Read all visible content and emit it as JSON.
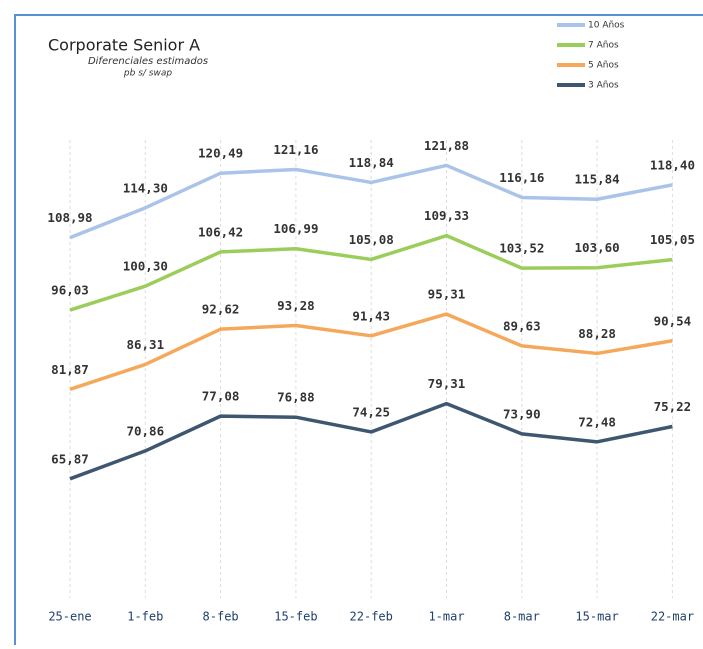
{
  "chart_data": {
    "type": "line",
    "title": "Corporate Senior A",
    "subtitle": "Diferenciales estimados",
    "subtitle2": "pb s/ swap",
    "categories": [
      "25-ene",
      "1-feb",
      "8-feb",
      "15-feb",
      "22-feb",
      "1-mar",
      "8-mar",
      "15-mar",
      "22-mar"
    ],
    "ylim": [
      46,
      130
    ],
    "grid": true,
    "legend": "top-right",
    "series": [
      {
        "name": "10 Años",
        "color": "#a9c4e8",
        "values": [
          108.98,
          114.3,
          120.49,
          121.16,
          118.84,
          121.88,
          116.16,
          115.84,
          118.4
        ],
        "value_labels": [
          "108,98",
          "114,30",
          "120,49",
          "121,16",
          "118,84",
          "121,88",
          "116,16",
          "115,84",
          "118,40"
        ]
      },
      {
        "name": "7 Años",
        "color": "#9acd5a",
        "values": [
          96.03,
          100.3,
          106.42,
          106.99,
          105.08,
          109.33,
          103.52,
          103.6,
          105.05
        ],
        "value_labels": [
          "96,03",
          "100,30",
          "106,42",
          "106,99",
          "105,08",
          "109,33",
          "103,52",
          "103,60",
          "105,05"
        ]
      },
      {
        "name": "5 Años",
        "color": "#f5a85a",
        "values": [
          81.87,
          86.31,
          92.62,
          93.28,
          91.43,
          95.31,
          89.63,
          88.28,
          90.54
        ],
        "value_labels": [
          "81,87",
          "86,31",
          "92,62",
          "93,28",
          "91,43",
          "95,31",
          "89,63",
          "88,28",
          "90,54"
        ]
      },
      {
        "name": "3 Años",
        "color": "#3e5670",
        "values": [
          65.87,
          70.86,
          77.08,
          76.88,
          74.25,
          79.31,
          73.9,
          72.48,
          75.22
        ],
        "value_labels": [
          "65,87",
          "70,86",
          "77,08",
          "76,88",
          "74,25",
          "79,31",
          "73,90",
          "72,48",
          "75,22"
        ]
      }
    ]
  }
}
